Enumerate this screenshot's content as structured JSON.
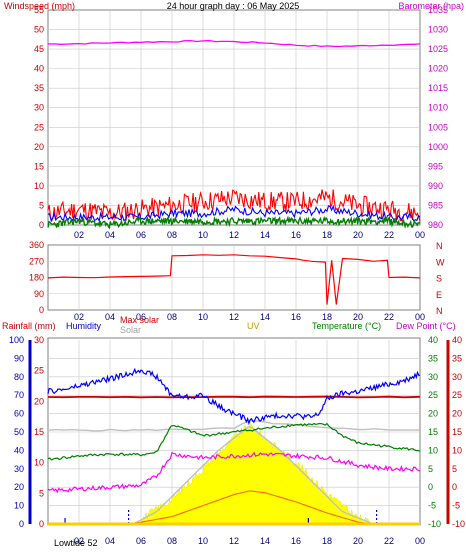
{
  "header": {
    "title": "24 hour graph day : 06 May 2025",
    "wind_label": "Windspeed (mph)",
    "baro_label": "Barometer (hpa)"
  },
  "legend": {
    "rainfall": "Rainfall (mm)",
    "humidity": "Humidity",
    "max_solar": "Max solar",
    "solar": "Solar",
    "uv": "UV",
    "temperature": "Temperature (°C)",
    "dew_point": "Dew Point (°C)"
  },
  "footer": {
    "lowtide": "Lowtide 52"
  },
  "colors": {
    "wind_gust": "#ff0000",
    "wind_avg": "#0000ff",
    "wind_min": "#008000",
    "barometer": "#ff00ff",
    "direction": "#ff0000",
    "humidity": "#0000ff",
    "rain": "#0000ff",
    "temperature": "#ff0000",
    "dew_point": "#ff00ff",
    "uv": "#ffff00",
    "solar": "#c0c0c0",
    "max_solar": "#ff0000",
    "green_line": "#008000"
  },
  "chart_data": [
    {
      "type": "line",
      "title": "24 hour graph day : 06 May 2025",
      "x_ticks": [
        "02",
        "04",
        "06",
        "08",
        "10",
        "12",
        "14",
        "16",
        "18",
        "20",
        "22",
        "00"
      ],
      "y_left": {
        "label": "Windspeed (mph)",
        "range": [
          0,
          55
        ],
        "ticks": [
          "0",
          "5",
          "10",
          "15",
          "20",
          "25",
          "30",
          "35",
          "40",
          "45",
          "50",
          "55"
        ]
      },
      "y_right": {
        "label": "Barometer (hpa)",
        "range": [
          980,
          1035
        ],
        "ticks": [
          "980",
          "985",
          "990",
          "995",
          "1000",
          "1005",
          "1010",
          "1015",
          "1020",
          "1025",
          "1030",
          "1035"
        ]
      },
      "series": [
        {
          "name": "Barometer (hpa)",
          "axis": "right",
          "x": [
            0,
            2,
            4,
            6,
            8,
            10,
            12,
            14,
            16,
            18,
            20,
            22,
            24
          ],
          "values": [
            1026.3,
            1026.4,
            1026.6,
            1026.8,
            1026.9,
            1027.1,
            1026.9,
            1026.6,
            1026.0,
            1025.7,
            1025.8,
            1026.1,
            1026.2
          ]
        },
        {
          "axis": "left",
          "x": [
            0,
            2,
            4,
            6,
            8,
            10,
            12,
            14,
            16,
            18,
            20,
            22,
            24
          ],
          "values": [
            3,
            4,
            3,
            4,
            5,
            6,
            7,
            6,
            6,
            7,
            5,
            4,
            3
          ]
        },
        {
          "axis": "left",
          "x": [
            0,
            2,
            4,
            6,
            8,
            10,
            12,
            14,
            16,
            18,
            20,
            22,
            24
          ],
          "values": [
            2,
            2,
            2,
            2,
            3,
            3,
            4,
            3,
            3,
            4,
            3,
            2,
            2
          ]
        },
        {
          "axis": "left",
          "x": [
            0,
            2,
            4,
            6,
            8,
            10,
            12,
            14,
            16,
            18,
            20,
            22,
            24
          ],
          "values": [
            0,
            1,
            0,
            1,
            1,
            1,
            1,
            1,
            1,
            1,
            1,
            1,
            0
          ]
        }
      ]
    },
    {
      "type": "line",
      "x_ticks": [
        "02",
        "04",
        "06",
        "08",
        "10",
        "12",
        "14",
        "16",
        "18",
        "20",
        "22",
        "00"
      ],
      "y_left": {
        "range": [
          0,
          360
        ],
        "ticks": [
          "0",
          "90",
          "180",
          "270",
          "360"
        ]
      },
      "y_right": {
        "ticks": [
          "N",
          "W",
          "S",
          "E",
          "N"
        ]
      },
      "series": [
        {
          "x": [
            0,
            1,
            2,
            3,
            4,
            5,
            6,
            7,
            7.9,
            8,
            9,
            10,
            11,
            12,
            13,
            14,
            15,
            16,
            16.5,
            17,
            17.9,
            18,
            18.3,
            18.6,
            19,
            20,
            21,
            21.9,
            22,
            23,
            24
          ],
          "values": [
            178,
            182,
            180,
            179,
            183,
            185,
            186,
            188,
            190,
            300,
            302,
            306,
            303,
            306,
            300,
            298,
            290,
            283,
            275,
            270,
            265,
            30,
            275,
            30,
            285,
            280,
            270,
            275,
            180,
            182,
            178
          ]
        }
      ]
    },
    {
      "type": "line",
      "x_ticks": [
        "02",
        "04",
        "06",
        "08",
        "10",
        "12",
        "14",
        "16",
        "18",
        "20",
        "22",
        "00"
      ],
      "y_rain": {
        "label": "Rainfall (mm)",
        "range": [
          0,
          30
        ],
        "ticks": [
          "0",
          "5",
          "10",
          "15",
          "20",
          "25",
          "30"
        ]
      },
      "y_humidity": {
        "label": "Humidity",
        "range": [
          0,
          100
        ],
        "ticks": [
          "0",
          "10",
          "20",
          "30",
          "40",
          "50",
          "60",
          "70",
          "80",
          "90",
          "100"
        ]
      },
      "y_temperature": {
        "label": "Temperature (°C)",
        "range": [
          -10,
          40
        ],
        "ticks": [
          "-10",
          "-5",
          "0",
          "5",
          "10",
          "15",
          "20",
          "25",
          "30",
          "35",
          "40"
        ]
      },
      "y_dew_point": {
        "label": "Dew Point (°C)",
        "range": [
          -10,
          40
        ],
        "ticks": [
          "-10",
          "-5",
          "0",
          "5",
          "10",
          "15",
          "20",
          "25",
          "30",
          "35",
          "40"
        ]
      },
      "series": [
        {
          "name": "Humidity",
          "axis": "humidity",
          "x": [
            0,
            1,
            2,
            3,
            4,
            5,
            6,
            7,
            8,
            9,
            10,
            11,
            12,
            13,
            14,
            15,
            16,
            17,
            17.5,
            18,
            19,
            20,
            21,
            22,
            23,
            24
          ],
          "values": [
            72,
            73,
            75,
            77,
            79,
            81,
            84,
            80,
            70,
            69,
            70,
            64,
            60,
            56,
            58,
            59,
            59,
            58,
            60,
            68,
            71,
            72,
            74,
            76,
            78,
            82
          ]
        },
        {
          "name": "Max solar",
          "axis": "temperature",
          "x": [
            0,
            24
          ],
          "values": [
            24.5,
            24.5
          ]
        },
        {
          "name": "Solar",
          "axis": "humidity",
          "x": [
            0,
            6,
            12,
            13,
            18,
            24
          ],
          "values": [
            51,
            51,
            52,
            56,
            52,
            51
          ]
        },
        {
          "name": "Temperature (°C)",
          "axis": "temperature",
          "x": [
            0,
            2,
            4,
            6,
            7,
            8,
            10,
            12,
            14,
            16,
            18,
            19,
            20,
            22,
            24
          ],
          "values": [
            7.5,
            8.5,
            9,
            8.8,
            9.5,
            17,
            14,
            15,
            16,
            17,
            17,
            14,
            12,
            11,
            10
          ]
        },
        {
          "name": "Dew Point (°C)",
          "axis": "dew_point",
          "x": [
            0,
            2,
            4,
            6,
            7,
            8,
            10,
            12,
            14,
            16,
            18,
            20,
            22,
            24
          ],
          "values": [
            -1,
            -0.5,
            0,
            0.5,
            3,
            9,
            8,
            8.5,
            9,
            8.5,
            8,
            6,
            5,
            5
          ]
        },
        {
          "name": "UV",
          "axis": "rain",
          "x": [
            5.5,
            8,
            10,
            12,
            13,
            14,
            16,
            18,
            20,
            21
          ],
          "values": [
            0,
            4,
            9,
            14,
            16,
            14,
            10,
            5,
            1,
            0
          ]
        },
        {
          "name": "Max solar curve",
          "axis": "rain",
          "x": [
            5.5,
            7,
            9,
            11,
            13,
            15,
            17,
            19,
            21
          ],
          "values": [
            0,
            2,
            7,
            12,
            16,
            12,
            7,
            2,
            0
          ]
        },
        {
          "axis": "temperature",
          "x": [
            5,
            6,
            8,
            10,
            12,
            13,
            14,
            16,
            18,
            20,
            21
          ],
          "values": [
            -10,
            -9.5,
            -8,
            -5,
            -2,
            -1,
            -1.5,
            -4,
            -7,
            -9.5,
            -10
          ]
        }
      ]
    }
  ]
}
